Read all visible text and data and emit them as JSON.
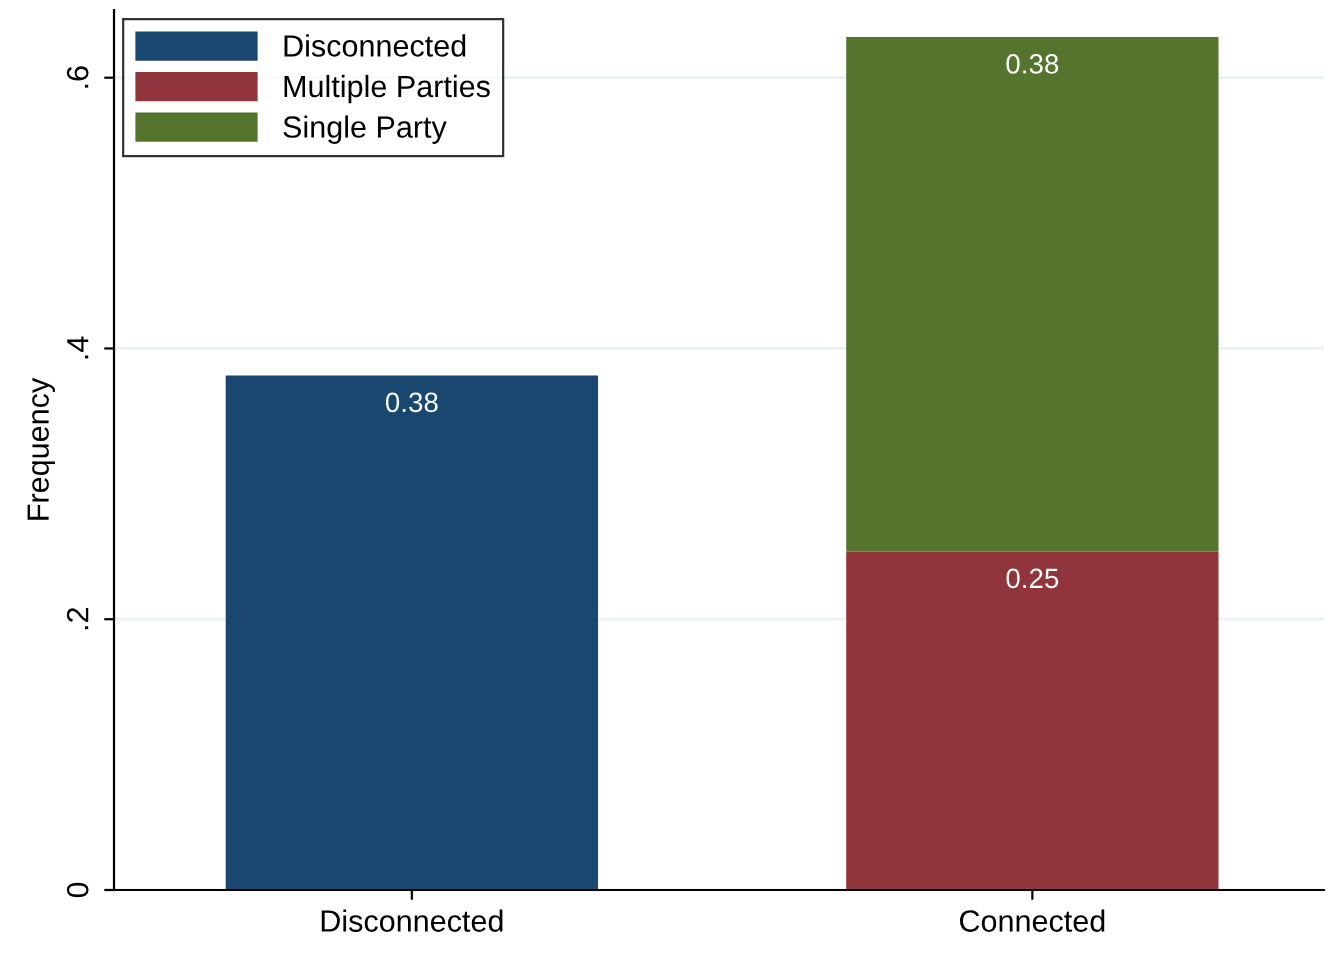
{
  "chart_data": {
    "type": "bar",
    "stacked": true,
    "ylabel": "Frequency",
    "categories": [
      "Disconnected",
      "Connected"
    ],
    "series": [
      {
        "name": "Disconnected",
        "color": "#1a476f",
        "values": [
          0.38,
          null
        ]
      },
      {
        "name": "Multiple Parties",
        "color": "#90353b",
        "values": [
          null,
          0.25
        ]
      },
      {
        "name": "Single Party",
        "color": "#55752f",
        "values": [
          null,
          0.38
        ]
      }
    ],
    "ylim": [
      0,
      0.65
    ],
    "yticks": [
      {
        "value": 0,
        "label": "0"
      },
      {
        "value": 0.2,
        "label": ".2"
      },
      {
        "value": 0.4,
        "label": ".4"
      },
      {
        "value": 0.6,
        "label": ".6"
      }
    ],
    "grid": "y",
    "legend": "top left",
    "data_labels": true
  }
}
